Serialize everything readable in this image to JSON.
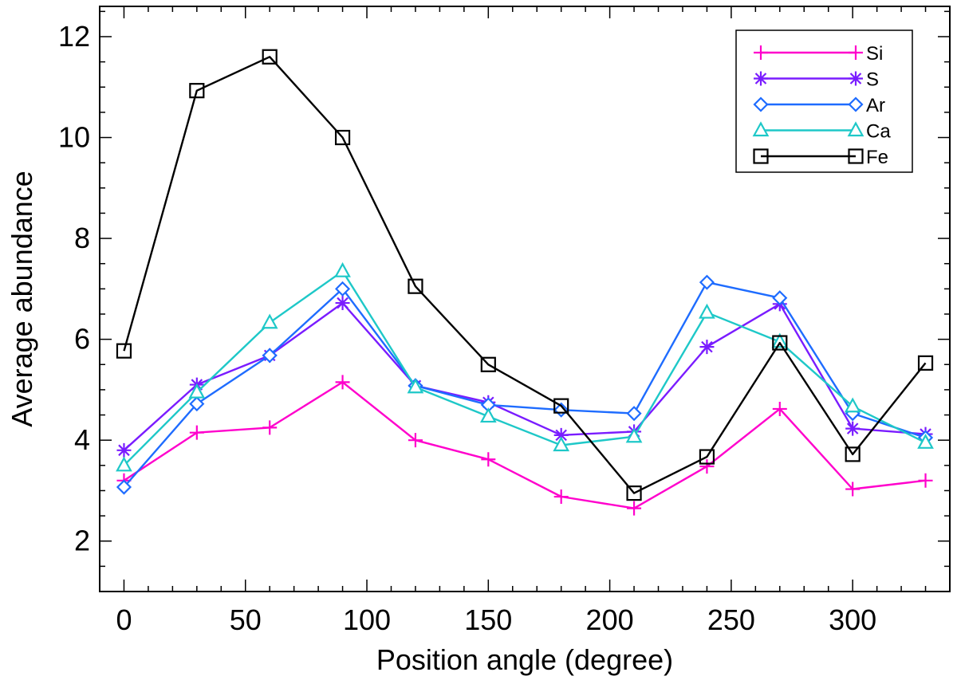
{
  "chart_data": {
    "type": "line",
    "xlabel": "Position angle (degree)",
    "ylabel": "Average abundance",
    "xlim": [
      -10,
      340
    ],
    "ylim": [
      1,
      12.6
    ],
    "x_major_ticks": [
      0,
      50,
      100,
      150,
      200,
      250,
      300
    ],
    "x_minor_step": 10,
    "y_major_ticks": [
      2,
      4,
      6,
      8,
      10,
      12
    ],
    "y_minor_step": 0.5,
    "x": [
      0,
      30,
      60,
      90,
      120,
      150,
      180,
      210,
      240,
      270,
      300,
      330
    ],
    "series": [
      {
        "name": "Si",
        "color": "#ff00cc",
        "marker": "plus",
        "values": [
          3.2,
          4.15,
          4.25,
          5.15,
          4.0,
          3.62,
          2.88,
          2.65,
          3.48,
          4.62,
          3.03,
          3.2
        ]
      },
      {
        "name": "S",
        "color": "#7a1cff",
        "marker": "asterisk",
        "values": [
          3.8,
          5.1,
          5.68,
          6.72,
          5.08,
          4.75,
          4.1,
          4.17,
          5.85,
          6.7,
          4.23,
          4.12
        ]
      },
      {
        "name": "Ar",
        "color": "#1e6cff",
        "marker": "diamond",
        "values": [
          3.07,
          4.72,
          5.68,
          7.0,
          5.08,
          4.7,
          4.6,
          4.53,
          7.13,
          6.82,
          4.53,
          4.05
        ]
      },
      {
        "name": "Ca",
        "color": "#1ec8c8",
        "marker": "triangle",
        "values": [
          3.5,
          4.95,
          6.33,
          7.35,
          5.05,
          4.47,
          3.9,
          4.07,
          6.53,
          5.95,
          4.67,
          3.95
        ]
      },
      {
        "name": "Fe",
        "color": "#000000",
        "marker": "square",
        "values": [
          5.77,
          10.93,
          11.6,
          10.0,
          7.05,
          5.5,
          4.68,
          2.95,
          3.67,
          5.93,
          3.72,
          5.53
        ]
      }
    ],
    "legend": {
      "position": "top-right",
      "entries": [
        "Si",
        "S",
        "Ar",
        "Ca",
        "Fe"
      ]
    }
  }
}
